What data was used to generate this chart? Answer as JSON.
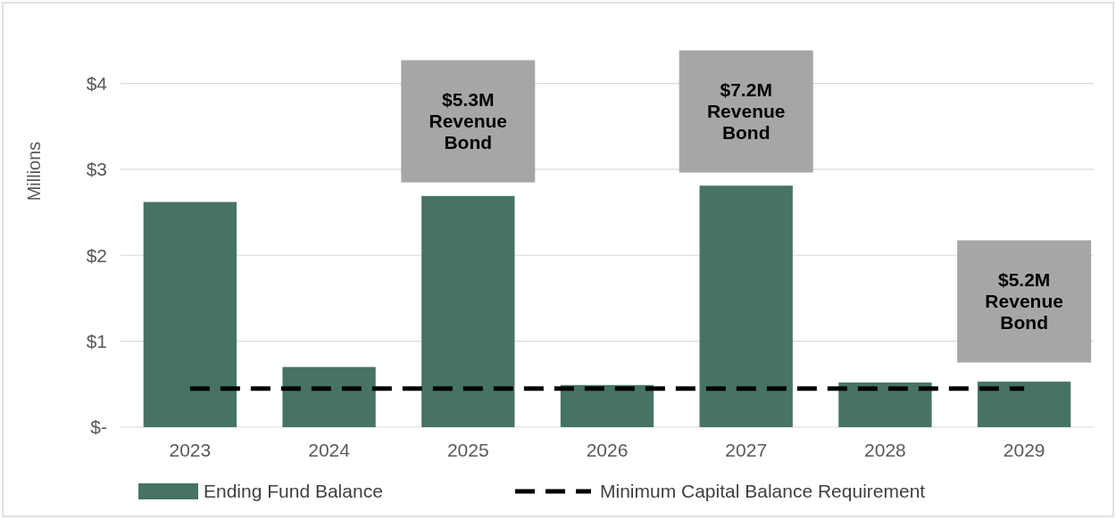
{
  "chart_data": {
    "type": "bar",
    "ylabel": "Millions",
    "categories": [
      "2023",
      "2024",
      "2025",
      "2026",
      "2027",
      "2028",
      "2029"
    ],
    "series": [
      {
        "name": "Ending Fund Balance",
        "color": "#467365",
        "values": [
          2.62,
          0.7,
          2.69,
          0.49,
          2.81,
          0.52,
          0.53
        ]
      },
      {
        "name": "Minimum Capital Balance Requirement",
        "type": "line",
        "color": "#000000",
        "line_style": "dashed",
        "values": [
          0.45,
          0.45,
          0.45,
          0.45,
          0.45,
          0.45,
          0.45
        ]
      }
    ],
    "ylim": [
      0,
      4.4
    ],
    "yticks": [
      {
        "value": 0,
        "label": "$-"
      },
      {
        "value": 1,
        "label": "$1"
      },
      {
        "value": 2,
        "label": "$2"
      },
      {
        "value": 3,
        "label": "$3"
      },
      {
        "value": 4,
        "label": "$4"
      }
    ],
    "grid": "y",
    "legend": "bottom",
    "marker": "none",
    "annotations": [
      "$5.3M\nRevenue\nBond",
      "$7.2M\nRevenue\nBond",
      "$5.2M\nRevenue\nBond"
    ]
  }
}
